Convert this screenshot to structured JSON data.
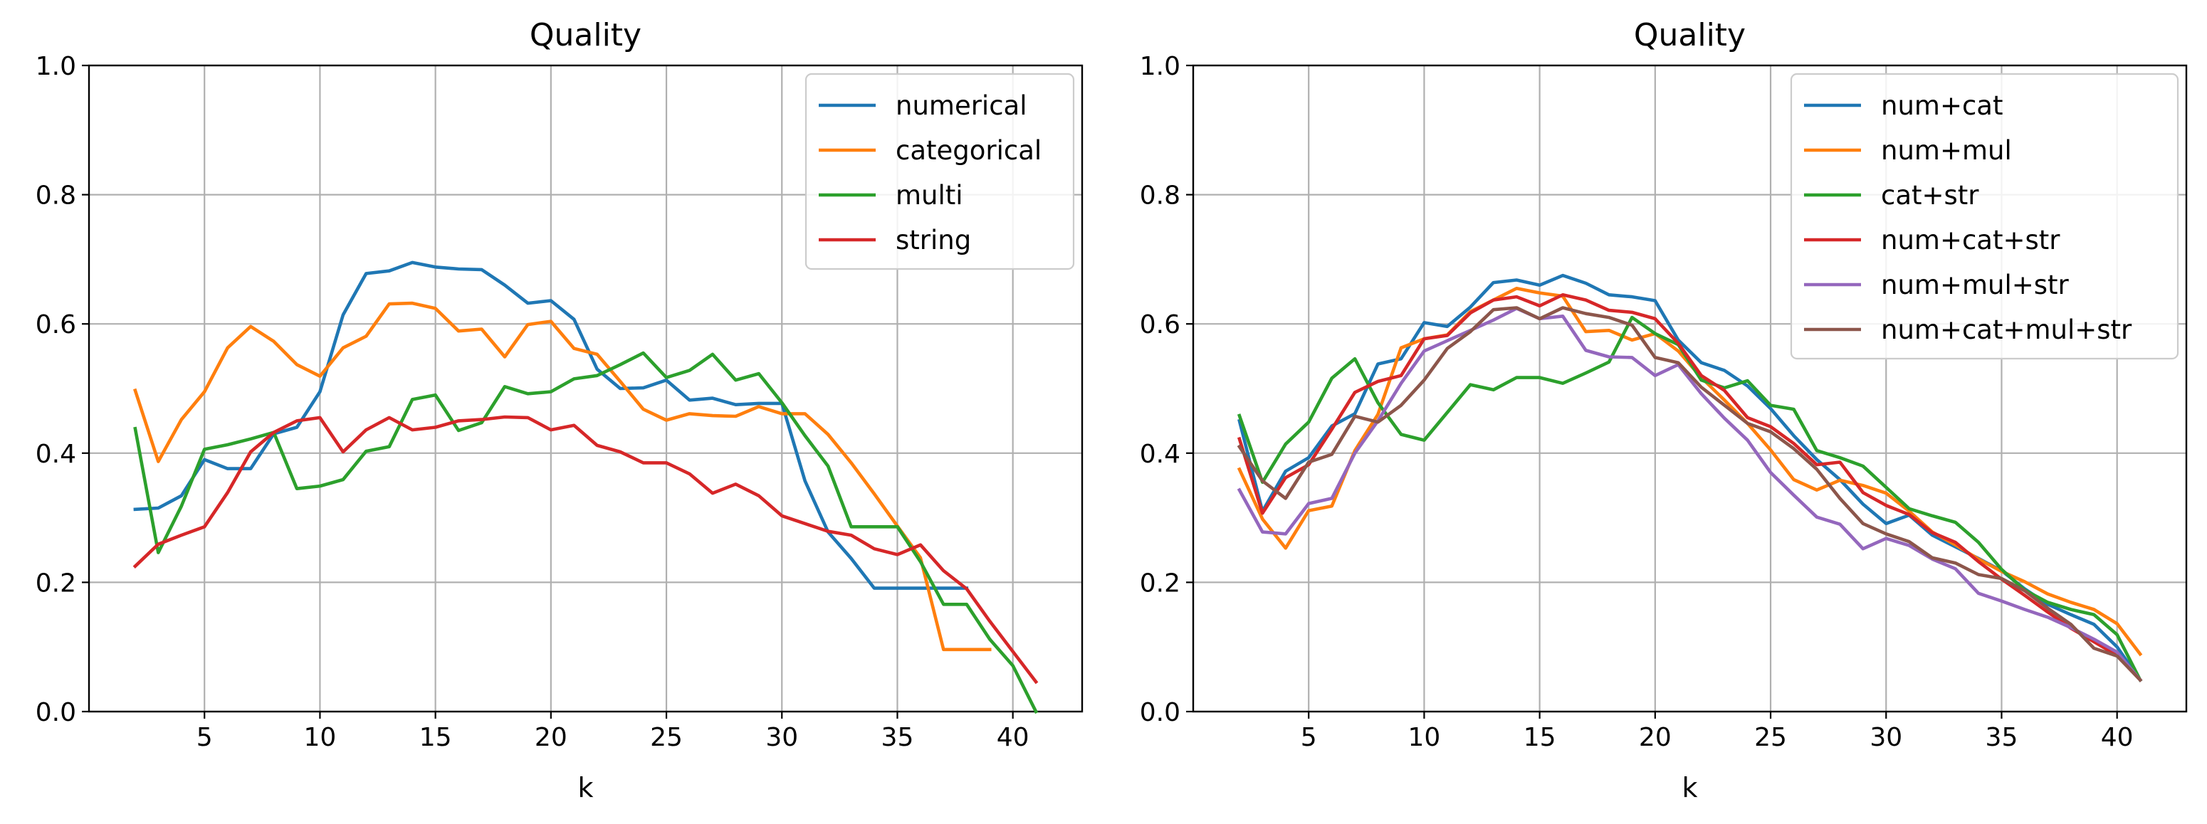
{
  "chart_data": [
    {
      "type": "line",
      "title": "Quality",
      "xlabel": "k",
      "ylabel": "",
      "xlim": [
        0,
        43
      ],
      "ylim": [
        0,
        1
      ],
      "xticks": [
        5,
        10,
        15,
        20,
        25,
        30,
        35,
        40
      ],
      "yticks": [
        "0.0",
        "0.2",
        "0.4",
        "0.6",
        "0.8",
        "1.0"
      ],
      "grid": true,
      "legend_position": "top-right",
      "x": [
        2,
        3,
        4,
        5,
        6,
        7,
        8,
        9,
        10,
        11,
        12,
        13,
        14,
        15,
        16,
        17,
        18,
        19,
        20,
        21,
        22,
        23,
        24,
        25,
        26,
        27,
        28,
        29,
        30,
        31,
        32,
        33,
        34,
        35,
        36,
        37,
        38,
        39,
        40,
        41
      ],
      "series": [
        {
          "name": "numerical",
          "color": "#1f77b4",
          "values": [
            0.313,
            0.315,
            0.334,
            0.39,
            0.376,
            0.376,
            0.43,
            0.44,
            0.495,
            0.614,
            0.678,
            0.682,
            0.695,
            0.688,
            0.685,
            0.684,
            0.66,
            0.632,
            0.636,
            0.607,
            0.53,
            0.5,
            0.501,
            0.513,
            0.482,
            0.485,
            0.475,
            0.477,
            0.477,
            0.357,
            0.278,
            0.237,
            0.191,
            0.191,
            0.191,
            0.191,
            0.191,
            null,
            null,
            null
          ]
        },
        {
          "name": "categorical",
          "color": "#ff7f0e",
          "values": [
            0.497,
            0.387,
            0.452,
            0.495,
            0.563,
            0.596,
            0.573,
            0.537,
            0.519,
            0.563,
            0.581,
            0.631,
            0.632,
            0.624,
            0.589,
            0.592,
            0.549,
            0.599,
            0.604,
            0.562,
            0.553,
            0.511,
            0.468,
            0.451,
            0.461,
            0.458,
            0.457,
            0.472,
            0.461,
            0.461,
            0.429,
            0.385,
            0.337,
            0.287,
            0.238,
            0.096,
            0.096,
            0.096,
            null,
            null
          ]
        },
        {
          "name": "multi",
          "color": "#2ca02c",
          "values": [
            0.438,
            0.246,
            0.318,
            0.406,
            0.413,
            0.422,
            0.432,
            0.345,
            0.349,
            0.359,
            0.403,
            0.41,
            0.483,
            0.49,
            0.435,
            0.447,
            0.503,
            0.492,
            0.495,
            0.515,
            0.52,
            0.537,
            0.555,
            0.517,
            0.528,
            0.553,
            0.513,
            0.523,
            0.478,
            0.427,
            0.38,
            0.286,
            0.286,
            0.286,
            0.232,
            0.166,
            0.166,
            0.112,
            0.071,
            0.0
          ]
        },
        {
          "name": "string",
          "color": "#d62728",
          "values": [
            0.225,
            0.259,
            0.273,
            0.286,
            0.339,
            0.402,
            0.432,
            0.45,
            0.455,
            0.402,
            0.436,
            0.455,
            0.436,
            0.44,
            0.45,
            0.452,
            0.456,
            0.455,
            0.436,
            0.443,
            0.412,
            0.402,
            0.385,
            0.385,
            0.368,
            0.338,
            0.352,
            0.334,
            0.303,
            0.291,
            0.279,
            0.273,
            0.252,
            0.243,
            0.258,
            0.218,
            0.19,
            0.14,
            0.093,
            0.046
          ]
        }
      ]
    },
    {
      "type": "line",
      "title": "Quality",
      "xlabel": "k",
      "ylabel": "",
      "xlim": [
        0,
        43
      ],
      "ylim": [
        0,
        1
      ],
      "xticks": [
        5,
        10,
        15,
        20,
        25,
        30,
        35,
        40
      ],
      "yticks": [
        "0.0",
        "0.2",
        "0.4",
        "0.6",
        "0.8",
        "1.0"
      ],
      "grid": true,
      "legend_position": "top-right",
      "x": [
        2,
        3,
        4,
        5,
        6,
        7,
        8,
        9,
        10,
        11,
        12,
        13,
        14,
        15,
        16,
        17,
        18,
        19,
        20,
        21,
        22,
        23,
        24,
        25,
        26,
        27,
        28,
        29,
        30,
        31,
        32,
        33,
        34,
        35,
        36,
        37,
        38,
        39,
        40,
        41
      ],
      "series": [
        {
          "name": "num+cat",
          "color": "#1f77b4",
          "values": [
            0.45,
            0.31,
            0.372,
            0.393,
            0.442,
            0.461,
            0.538,
            0.546,
            0.602,
            0.596,
            0.626,
            0.664,
            0.668,
            0.66,
            0.675,
            0.663,
            0.645,
            0.642,
            0.636,
            0.575,
            0.54,
            0.528,
            0.504,
            0.469,
            0.427,
            0.39,
            0.359,
            0.321,
            0.291,
            0.304,
            0.273,
            0.255,
            0.237,
            0.218,
            0.19,
            0.166,
            0.15,
            0.135,
            0.1,
            0.049
          ]
        },
        {
          "name": "num+mul",
          "color": "#ff7f0e",
          "values": [
            0.375,
            0.298,
            0.253,
            0.311,
            0.318,
            0.404,
            0.46,
            0.563,
            0.577,
            0.583,
            0.619,
            0.637,
            0.655,
            0.648,
            0.643,
            0.588,
            0.59,
            0.575,
            0.585,
            0.558,
            0.517,
            0.482,
            0.446,
            0.405,
            0.359,
            0.343,
            0.358,
            0.35,
            0.338,
            0.31,
            0.278,
            0.258,
            0.236,
            0.217,
            0.201,
            0.182,
            0.169,
            0.158,
            0.136,
            0.089
          ]
        },
        {
          "name": "cat+str",
          "color": "#2ca02c",
          "values": [
            0.458,
            0.355,
            0.414,
            0.448,
            0.516,
            0.546,
            0.478,
            0.429,
            0.42,
            0.463,
            0.506,
            0.498,
            0.517,
            0.517,
            0.508,
            0.524,
            0.541,
            0.61,
            0.585,
            0.568,
            0.513,
            0.501,
            0.512,
            0.474,
            0.468,
            0.404,
            0.393,
            0.38,
            0.347,
            0.314,
            0.303,
            0.293,
            0.262,
            0.22,
            0.188,
            0.169,
            0.158,
            0.15,
            0.119,
            0.049
          ]
        },
        {
          "name": "num+cat+str",
          "color": "#d62728",
          "values": [
            0.422,
            0.307,
            0.362,
            0.382,
            0.437,
            0.494,
            0.511,
            0.52,
            0.577,
            0.582,
            0.617,
            0.637,
            0.642,
            0.628,
            0.645,
            0.637,
            0.621,
            0.618,
            0.608,
            0.57,
            0.52,
            0.497,
            0.455,
            0.441,
            0.415,
            0.382,
            0.386,
            0.339,
            0.319,
            0.305,
            0.277,
            0.262,
            0.232,
            0.205,
            0.18,
            0.154,
            0.129,
            0.108,
            0.087,
            0.049
          ]
        },
        {
          "name": "num+mul+str",
          "color": "#9467bd",
          "values": [
            0.343,
            0.278,
            0.275,
            0.322,
            0.33,
            0.4,
            0.45,
            0.508,
            0.558,
            0.574,
            0.59,
            0.606,
            0.624,
            0.608,
            0.612,
            0.559,
            0.549,
            0.548,
            0.52,
            0.537,
            0.492,
            0.454,
            0.42,
            0.37,
            0.335,
            0.301,
            0.29,
            0.252,
            0.268,
            0.257,
            0.236,
            0.221,
            0.183,
            0.171,
            0.158,
            0.146,
            0.13,
            0.112,
            0.092,
            0.049
          ]
        },
        {
          "name": "num+cat+mul+str",
          "color": "#8c564b",
          "values": [
            0.41,
            0.357,
            0.33,
            0.386,
            0.398,
            0.457,
            0.448,
            0.474,
            0.513,
            0.562,
            0.588,
            0.622,
            0.625,
            0.608,
            0.625,
            0.616,
            0.61,
            0.598,
            0.548,
            0.54,
            0.502,
            0.474,
            0.446,
            0.433,
            0.407,
            0.375,
            0.33,
            0.291,
            0.275,
            0.263,
            0.238,
            0.23,
            0.212,
            0.206,
            0.187,
            0.16,
            0.135,
            0.098,
            0.086,
            0.049
          ]
        }
      ]
    }
  ]
}
